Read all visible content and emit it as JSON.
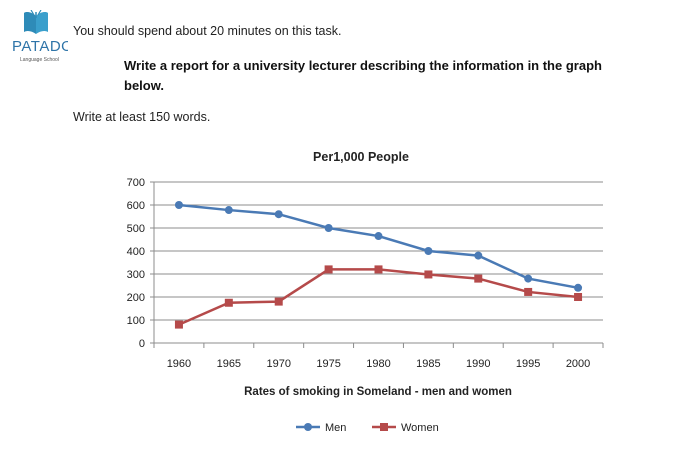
{
  "logo": {
    "text": "PATADO",
    "subtext": "Language School",
    "icon": "open-book-icon"
  },
  "instruction": "You should spend about 20 minutes on this task.",
  "task": "Write a report for a university lecturer describing the information in the graph below.",
  "word_requirement": "Write at least 150 words.",
  "chart_data": {
    "type": "line",
    "title": "Per1,000 People",
    "xlabel": "Rates of smoking  in Someland - men and women",
    "ylabel": "",
    "categories": [
      "1960",
      "1965",
      "1970",
      "1975",
      "1980",
      "1985",
      "1990",
      "1995",
      "2000"
    ],
    "ylim": [
      0,
      700
    ],
    "yticks": [
      0,
      100,
      200,
      300,
      400,
      500,
      600,
      700
    ],
    "grid": true,
    "legend_position": "bottom",
    "series": [
      {
        "name": "Men",
        "marker": "circle",
        "color": "#4a7ab5",
        "values": [
          600,
          578,
          560,
          500,
          465,
          400,
          380,
          280,
          240
        ]
      },
      {
        "name": "Women",
        "marker": "square",
        "color": "#b54a4a",
        "values": [
          80,
          175,
          180,
          320,
          320,
          298,
          280,
          222,
          200
        ]
      }
    ]
  }
}
